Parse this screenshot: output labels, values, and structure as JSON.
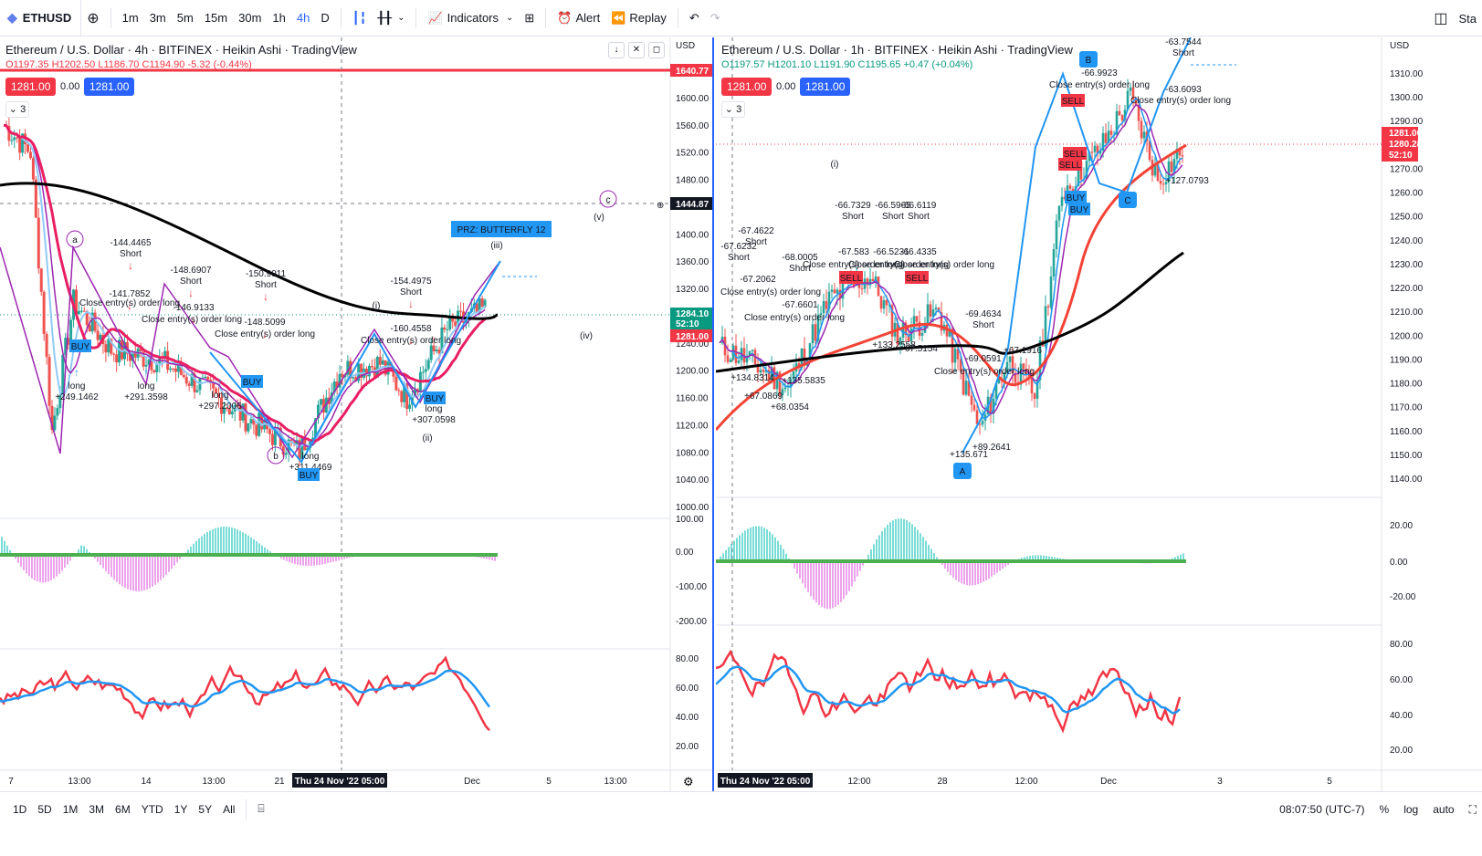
{
  "toolbar": {
    "symbol": "ETHUSD",
    "add_icon": "plus-circle-icon",
    "intervals": [
      "1m",
      "3m",
      "5m",
      "15m",
      "30m",
      "1h",
      "4h",
      "D"
    ],
    "active_interval": "4h",
    "indicators_label": "Indicators",
    "alert_label": "Alert",
    "replay_label": "Replay",
    "right_label": "Sta"
  },
  "left": {
    "title": "Ethereum / U.S. Dollar · 4h · BITFINEX · Heikin Ashi · TradingView",
    "ohlc": {
      "o": "O1197.35",
      "h": "H1202.50",
      "l": "L1186.70",
      "c": "C1194.90",
      "chg": "-5.32 (-0.44%)"
    },
    "sell_price": "1281.00",
    "spread": "0.00",
    "buy_price": "1281.00",
    "layers": "3",
    "currency": "USD",
    "price_axis": [
      "1600.00",
      "1560.00",
      "1520.00",
      "1480.00",
      "1400.00",
      "1360.00",
      "1320.00",
      "1240.00",
      "1200.00",
      "1160.00",
      "1120.00",
      "1080.00",
      "1040.00",
      "1000.00"
    ],
    "tags": {
      "top": "1640.77",
      "cross": "1444.87",
      "last": "1284.10",
      "countdown": "52:10",
      "pos": "1281.00"
    },
    "macd_axis": [
      "100.00",
      "0.00",
      "-100.00",
      "-200.00"
    ],
    "rsi_axis": [
      "80.00",
      "60.00",
      "40.00",
      "20.00"
    ],
    "time_axis": [
      "7",
      "13:00",
      "14",
      "13:00",
      "21",
      "5",
      "13:00",
      "Dec"
    ],
    "cursor_time": "Thu 24 Nov '22   05:00",
    "prz_label": "PRZ: BUTTERFLY 12",
    "waves": [
      "a",
      "b",
      "c",
      "(i)",
      "(ii)",
      "(iii)",
      "(iv)",
      "(v)"
    ],
    "annotations": [
      {
        "t": "-144.4465",
        "s": "Short"
      },
      {
        "t": "-148.6907",
        "s": "Short"
      },
      {
        "t": "-141.7852",
        "s": ""
      },
      {
        "t": "-146.9133",
        "s": ""
      },
      {
        "t": "-150.9911",
        "s": "Short"
      },
      {
        "t": "-148.5099",
        "s": ""
      },
      {
        "t": "-154.4975",
        "s": "Short"
      },
      {
        "t": "-160.4558",
        "s": ""
      }
    ],
    "close_label": "Close entry(s) order long",
    "long_label": "long",
    "buy_label": "BUY",
    "longs": [
      "+249.1462",
      "+291.3598",
      "+297.2006",
      "+311.4469",
      "+307.0598"
    ]
  },
  "right": {
    "title": "Ethereum / U.S. Dollar · 1h · BITFINEX · Heikin Ashi · TradingView",
    "ohlc": {
      "o": "O1197.57",
      "h": "H1201.10",
      "l": "L1191.90",
      "c": "C1195.65",
      "chg": "+0.47 (+0.04%)"
    },
    "sell_price": "1281.00",
    "spread": "0.00",
    "buy_price": "1281.00",
    "layers": "3",
    "currency": "USD",
    "price_axis": [
      "1310.00",
      "1300.00",
      "1290.00",
      "1270.00",
      "1260.00",
      "1250.00",
      "1240.00",
      "1230.00",
      "1220.00",
      "1210.00",
      "1200.00",
      "1190.00",
      "1180.00",
      "1170.00",
      "1160.00",
      "1150.00",
      "1140.00"
    ],
    "tags": {
      "last": "1281.00",
      "cur": "1280.28",
      "countdown": "52:10"
    },
    "macd_axis": [
      "20.00",
      "0.00",
      "-20.00"
    ],
    "rsi_axis": [
      "80.00",
      "60.00",
      "40.00",
      "20.00"
    ],
    "time_axis": [
      "12:00",
      "28",
      "12:00",
      "Dec",
      "3",
      "5"
    ],
    "cursor_time": "Thu 24 Nov '22   05:00",
    "waves": [
      "(i)",
      "A",
      "B",
      "C"
    ],
    "annotations": [
      {
        "t": "-67.6232",
        "s": "Short"
      },
      {
        "t": "-67.4622",
        "s": "Short"
      },
      {
        "t": "-68.0005",
        "s": "Short"
      },
      {
        "t": "-66.7329",
        "s": "Short"
      },
      {
        "t": "-66.5965",
        "s": "Short"
      },
      {
        "t": "-66.6119",
        "s": "Short"
      },
      {
        "t": "-67.583",
        "s": ""
      },
      {
        "t": "-66.5231",
        "s": ""
      },
      {
        "t": "-66.4335",
        "s": ""
      },
      {
        "t": "-67.2062",
        "s": ""
      },
      {
        "t": "-67.6601",
        "s": ""
      },
      {
        "t": "-69.4634",
        "s": "Short"
      },
      {
        "t": "-69.0591",
        "s": ""
      },
      {
        "t": "-66.9923",
        "s": ""
      },
      {
        "t": "-63.7544",
        "s": "Short"
      },
      {
        "t": "-63.6093",
        "s": ""
      }
    ],
    "close_label": "Close entry(s) order long",
    "sell_label": "SELL",
    "buy_label": "BUY",
    "longs": [
      "+134.8314",
      "+135.5835",
      "+68.0354",
      "+133.2558",
      "+67.5154",
      "+135.671",
      "+89.2641",
      "+67.1916",
      "+127.0793",
      "+67.0869"
    ]
  },
  "bottom": {
    "ranges": [
      "1D",
      "5D",
      "1M",
      "3M",
      "6M",
      "YTD",
      "1Y",
      "5Y",
      "All"
    ],
    "time": "08:07:50 (UTC-7)",
    "pct": "%",
    "log": "log",
    "auto": "auto"
  }
}
